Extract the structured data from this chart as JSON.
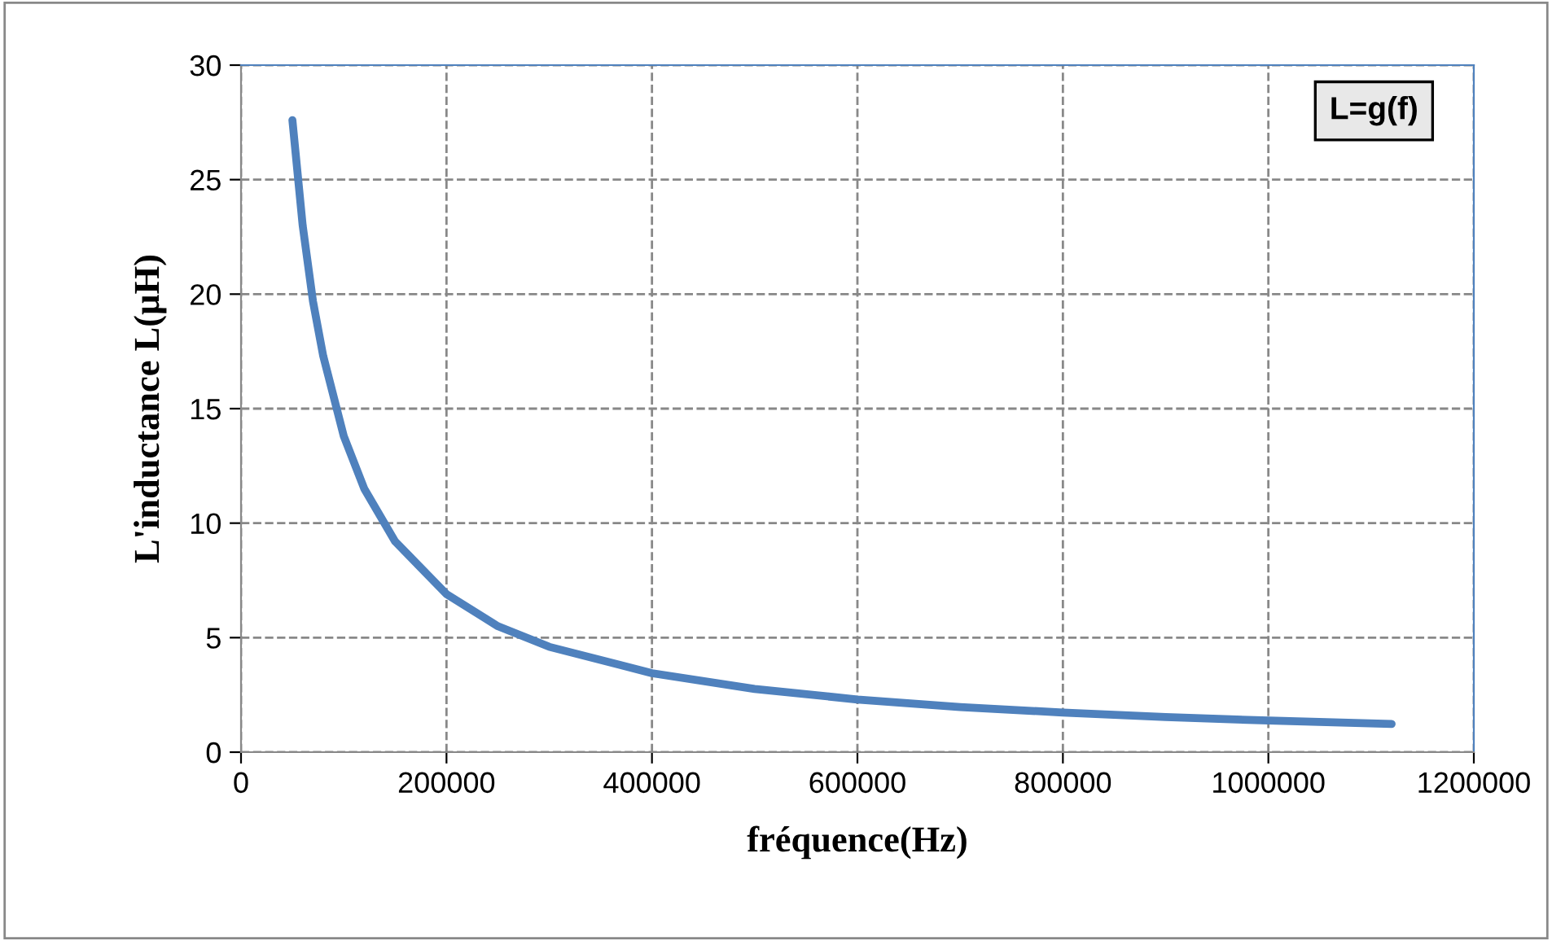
{
  "chart_data": {
    "type": "line",
    "xlabel": "fréquence(Hz)",
    "ylabel": "L'inductance L(µH)",
    "annotations": [
      "L=g(f)"
    ],
    "series": [
      {
        "color": "#4f81bd",
        "x": [
          50000,
          60000,
          70000,
          80000,
          100000,
          120000,
          150000,
          200000,
          250000,
          300000,
          400000,
          500000,
          600000,
          700000,
          800000,
          900000,
          1000000,
          1120000
        ],
        "values": [
          27.6,
          23.0,
          19.7,
          17.3,
          13.8,
          11.5,
          9.2,
          6.9,
          5.5,
          4.6,
          3.45,
          2.76,
          2.3,
          1.97,
          1.73,
          1.53,
          1.38,
          1.23
        ]
      }
    ],
    "xlim": [
      0,
      1200000
    ],
    "xticks": [
      0,
      200000,
      400000,
      600000,
      800000,
      1000000,
      1200000
    ],
    "ylim": [
      0,
      30
    ],
    "yticks": [
      0,
      5,
      10,
      15,
      20,
      25,
      30
    ],
    "grid": true,
    "line_style": "solid",
    "marker": "none"
  }
}
